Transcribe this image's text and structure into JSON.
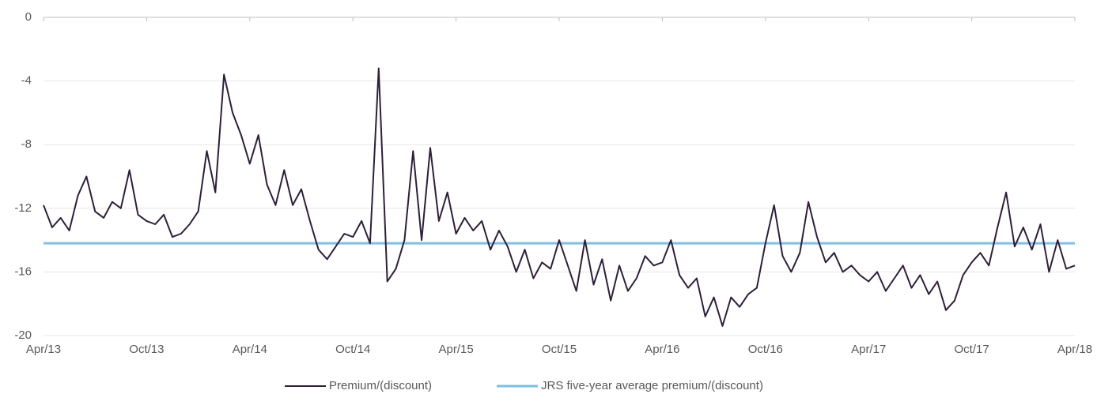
{
  "chart_data": {
    "type": "line",
    "categories": [
      "Apr/13",
      null,
      null,
      null,
      null,
      null,
      null,
      null,
      null,
      null,
      null,
      null,
      "Oct/13",
      null,
      null,
      null,
      null,
      null,
      null,
      null,
      null,
      null,
      null,
      null,
      "Apr/14",
      null,
      null,
      null,
      null,
      null,
      null,
      null,
      null,
      null,
      null,
      null,
      "Oct/14",
      null,
      null,
      null,
      null,
      null,
      null,
      null,
      null,
      null,
      null,
      null,
      "Apr/15",
      null,
      null,
      null,
      null,
      null,
      null,
      null,
      null,
      null,
      null,
      null,
      "Oct/15",
      null,
      null,
      null,
      null,
      null,
      null,
      null,
      null,
      null,
      null,
      null,
      "Apr/16",
      null,
      null,
      null,
      null,
      null,
      null,
      null,
      null,
      null,
      null,
      null,
      "Oct/16",
      null,
      null,
      null,
      null,
      null,
      null,
      null,
      null,
      null,
      null,
      null,
      "Apr/17",
      null,
      null,
      null,
      null,
      null,
      null,
      null,
      null,
      null,
      null,
      null,
      "Oct/17",
      null,
      null,
      null,
      null,
      null,
      null,
      null,
      null,
      null,
      null,
      null,
      "Apr/18"
    ],
    "series": [
      {
        "name": "Premium/(discount)",
        "color": "#2e1f3b",
        "width": 2,
        "values": [
          -11.8,
          -13.2,
          -12.6,
          -13.4,
          -11.2,
          -10.0,
          -12.2,
          -12.6,
          -11.6,
          -12.0,
          -9.6,
          -12.4,
          -12.8,
          -13.0,
          -12.4,
          -13.8,
          -13.6,
          -13.0,
          -12.2,
          -8.4,
          -11.0,
          -3.6,
          -6.0,
          -7.4,
          -9.2,
          -7.4,
          -10.5,
          -11.8,
          -9.6,
          -11.8,
          -10.8,
          -12.8,
          -14.6,
          -15.2,
          -14.4,
          -13.6,
          -13.8,
          -12.8,
          -14.2,
          -3.2,
          -16.6,
          -15.8,
          -14.0,
          -8.4,
          -14.0,
          -8.2,
          -12.8,
          -11.0,
          -13.6,
          -12.6,
          -13.4,
          -12.8,
          -14.6,
          -13.4,
          -14.4,
          -16.0,
          -14.6,
          -16.4,
          -15.4,
          -15.8,
          -14.0,
          -15.6,
          -17.2,
          -14.0,
          -16.8,
          -15.2,
          -17.8,
          -15.6,
          -17.2,
          -16.4,
          -15.0,
          -15.6,
          -15.4,
          -14.0,
          -16.2,
          -17.0,
          -16.4,
          -18.8,
          -17.6,
          -19.4,
          -17.6,
          -18.2,
          -17.4,
          -17.0,
          -14.2,
          -11.8,
          -15.0,
          -16.0,
          -14.8,
          -11.6,
          -13.8,
          -15.4,
          -14.8,
          -16.0,
          -15.6,
          -16.2,
          -16.6,
          -16.0,
          -17.2,
          -16.4,
          -15.6,
          -17.0,
          -16.2,
          -17.4,
          -16.6,
          -18.4,
          -17.8,
          -16.2,
          -15.4,
          -14.8,
          -15.6,
          -13.2,
          -11.0,
          -14.4,
          -13.2,
          -14.6,
          -13.0,
          -16.0,
          -14.0,
          -15.8,
          -15.6
        ]
      },
      {
        "name": "JRS five-year average premium/(discount)",
        "color": "#7fbfe0",
        "width": 3,
        "values": [
          -14.2,
          -14.2,
          -14.2,
          -14.2,
          -14.2,
          -14.2,
          -14.2,
          -14.2,
          -14.2,
          -14.2,
          -14.2,
          -14.2,
          -14.2,
          -14.2,
          -14.2,
          -14.2,
          -14.2,
          -14.2,
          -14.2,
          -14.2,
          -14.2,
          -14.2,
          -14.2,
          -14.2,
          -14.2,
          -14.2,
          -14.2,
          -14.2,
          -14.2,
          -14.2,
          -14.2,
          -14.2,
          -14.2,
          -14.2,
          -14.2,
          -14.2,
          -14.2,
          -14.2,
          -14.2,
          -14.2,
          -14.2,
          -14.2,
          -14.2,
          -14.2,
          -14.2,
          -14.2,
          -14.2,
          -14.2,
          -14.2,
          -14.2,
          -14.2,
          -14.2,
          -14.2,
          -14.2,
          -14.2,
          -14.2,
          -14.2,
          -14.2,
          -14.2,
          -14.2,
          -14.2,
          -14.2,
          -14.2,
          -14.2,
          -14.2,
          -14.2,
          -14.2,
          -14.2,
          -14.2,
          -14.2,
          -14.2,
          -14.2,
          -14.2,
          -14.2,
          -14.2,
          -14.2,
          -14.2,
          -14.2,
          -14.2,
          -14.2,
          -14.2,
          -14.2,
          -14.2,
          -14.2,
          -14.2,
          -14.2,
          -14.2,
          -14.2,
          -14.2,
          -14.2,
          -14.2,
          -14.2,
          -14.2,
          -14.2,
          -14.2,
          -14.2,
          -14.2,
          -14.2,
          -14.2,
          -14.2,
          -14.2,
          -14.2,
          -14.2,
          -14.2,
          -14.2,
          -14.2,
          -14.2,
          -14.2,
          -14.2,
          -14.2,
          -14.2,
          -14.2,
          -14.2,
          -14.2,
          -14.2,
          -14.2,
          -14.2,
          -14.2,
          -14.2,
          -14.2,
          -14.2
        ]
      }
    ],
    "ylim": [
      -20,
      0
    ],
    "yticks": [
      0,
      -4,
      -8,
      -12,
      -16,
      -20
    ],
    "grid": true,
    "legend": "bottom"
  }
}
